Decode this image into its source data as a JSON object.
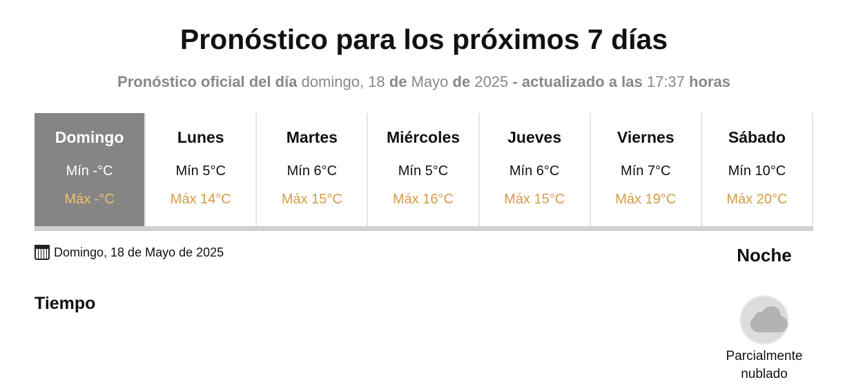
{
  "title": "Pronóstico para los próximos 7 días",
  "subtitle": {
    "p1": "Pronóstico oficial del día",
    "weekday": "domingo, 18",
    "p2": "de",
    "month": "Mayo",
    "p3": "de",
    "year": "2025",
    "p4": "- actualizado a las",
    "time": "17:37",
    "p5": "horas"
  },
  "days": [
    {
      "name": "Domingo",
      "min": "Mín -°C",
      "max": "Máx -°C",
      "active": true
    },
    {
      "name": "Lunes",
      "min": "Mín 5°C",
      "max": "Máx 14°C"
    },
    {
      "name": "Martes",
      "min": "Mín 6°C",
      "max": "Máx 15°C"
    },
    {
      "name": "Miércoles",
      "min": "Mín 5°C",
      "max": "Máx 16°C"
    },
    {
      "name": "Jueves",
      "min": "Mín 6°C",
      "max": "Máx 15°C"
    },
    {
      "name": "Viernes",
      "min": "Mín 7°C",
      "max": "Máx 19°C"
    },
    {
      "name": "Sábado",
      "min": "Mín 10°C",
      "max": "Máx 20°C"
    }
  ],
  "selected_date": "Domingo, 18 de Mayo de 2025",
  "section": "Tiempo",
  "period": {
    "label": "Noche",
    "icon": "partly-cloudy-night-icon",
    "condition": "Parcialmente nublado"
  },
  "colors": {
    "active_bg": "#858585",
    "max_temp": "#d69a45"
  }
}
